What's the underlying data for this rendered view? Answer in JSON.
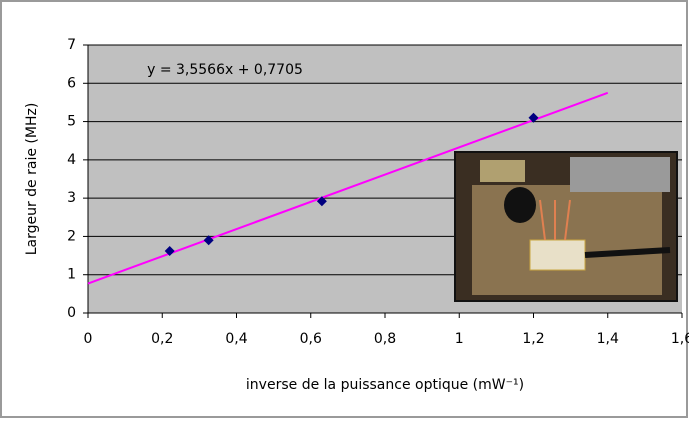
{
  "chart_data": {
    "type": "scatter",
    "equation": "y = 3,5566x + 0,7705",
    "xlabel": "inverse de la puissance optique (mW⁻¹)",
    "ylabel": "Largeur de raie (MHz)",
    "series": [
      {
        "color": "#000080",
        "x": [
          0.22,
          0.325,
          0.63,
          1.2
        ],
        "values": [
          1.62,
          1.9,
          2.92,
          5.1
        ]
      }
    ],
    "trendline": {
      "color": "#ff00ff",
      "x": [
        0,
        1.4
      ],
      "values": [
        0.77,
        5.75
      ]
    },
    "xlim": [
      0,
      1.6
    ],
    "ylim": [
      0,
      7
    ],
    "xticks": [
      0,
      {
        "value": 0.2,
        "label": "0,2"
      },
      {
        "value": 0.4,
        "label": "0,4"
      },
      {
        "value": 0.6,
        "label": "0,6"
      },
      {
        "value": 0.8,
        "label": "0,8"
      },
      1,
      {
        "value": 1.2,
        "label": "1,2"
      },
      {
        "value": 1.4,
        "label": "1,4"
      },
      {
        "value": 1.6,
        "label": "1,6"
      }
    ],
    "yticks": [
      0,
      1,
      2,
      3,
      4,
      5,
      6,
      7
    ],
    "grid": true,
    "plot_background": "#c0c0c0"
  }
}
